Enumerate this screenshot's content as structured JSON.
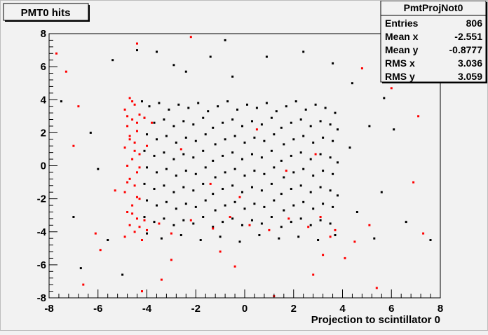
{
  "title": "PMT0 hits",
  "stats": {
    "name": "PmtProjNot0",
    "rows": [
      {
        "label": "Entries",
        "value": "806"
      },
      {
        "label": "Mean x",
        "value": "-2.551"
      },
      {
        "label": "Mean y",
        "value": "-0.8777"
      },
      {
        "label": "RMS x",
        "value": "3.036"
      },
      {
        "label": "RMS y",
        "value": "3.059"
      }
    ]
  },
  "chart_data": {
    "type": "scatter",
    "title": "PMT0 hits",
    "xlabel": "Projection to scintillator 0",
    "ylabel": "",
    "xlim": [
      -8,
      8
    ],
    "ylim": [
      -8,
      8
    ],
    "x_ticks": [
      -8,
      -6,
      -4,
      -2,
      0,
      2,
      4,
      6,
      8
    ],
    "y_ticks": [
      -8,
      -6,
      -4,
      -2,
      0,
      2,
      4,
      6,
      8
    ],
    "grid": false,
    "colors": {
      "series_black": "#000000",
      "series_red": "#ff0000",
      "frame": "#000000",
      "background": "#f2f2f2"
    },
    "series": [
      {
        "color": "#000000",
        "points": [
          [
            -4.2,
            3.9
          ],
          [
            -3.9,
            3.6
          ],
          [
            -3.5,
            3.8
          ],
          [
            -3.1,
            3.4
          ],
          [
            -2.7,
            3.7
          ],
          [
            -2.3,
            3.5
          ],
          [
            -1.9,
            3.8
          ],
          [
            -1.5,
            3.3
          ],
          [
            -1.1,
            3.6
          ],
          [
            -0.7,
            3.9
          ],
          [
            -0.3,
            3.4
          ],
          [
            0.1,
            3.7
          ],
          [
            0.5,
            3.5
          ],
          [
            0.9,
            3.8
          ],
          [
            1.3,
            3.3
          ],
          [
            1.7,
            3.6
          ],
          [
            2.1,
            3.9
          ],
          [
            2.5,
            3.4
          ],
          [
            2.9,
            3.7
          ],
          [
            3.3,
            3.5
          ],
          [
            3.7,
            3.2
          ],
          [
            -4.1,
            2.9
          ],
          [
            -3.7,
            2.6
          ],
          [
            -3.3,
            2.8
          ],
          [
            -2.9,
            2.4
          ],
          [
            -2.5,
            2.7
          ],
          [
            -2.1,
            2.5
          ],
          [
            -1.7,
            2.9
          ],
          [
            -1.3,
            2.3
          ],
          [
            -0.9,
            2.6
          ],
          [
            -0.5,
            2.8
          ],
          [
            -0.1,
            2.4
          ],
          [
            0.3,
            2.7
          ],
          [
            0.7,
            2.5
          ],
          [
            1.1,
            2.9
          ],
          [
            1.5,
            2.3
          ],
          [
            1.9,
            2.6
          ],
          [
            2.3,
            2.8
          ],
          [
            2.7,
            2.4
          ],
          [
            3.1,
            2.7
          ],
          [
            3.5,
            2.5
          ],
          [
            3.8,
            2.2
          ],
          [
            -4.0,
            1.9
          ],
          [
            -3.6,
            1.6
          ],
          [
            -3.2,
            1.8
          ],
          [
            -2.8,
            1.4
          ],
          [
            -2.4,
            1.7
          ],
          [
            -2.0,
            1.5
          ],
          [
            -1.6,
            1.9
          ],
          [
            -1.2,
            1.3
          ],
          [
            -0.8,
            1.6
          ],
          [
            -0.4,
            1.8
          ],
          [
            0.0,
            1.4
          ],
          [
            0.4,
            1.7
          ],
          [
            0.8,
            1.5
          ],
          [
            1.2,
            1.9
          ],
          [
            1.6,
            1.3
          ],
          [
            2.0,
            1.6
          ],
          [
            2.4,
            1.8
          ],
          [
            2.8,
            1.4
          ],
          [
            3.2,
            1.7
          ],
          [
            3.6,
            1.5
          ],
          [
            -4.1,
            0.9
          ],
          [
            -3.7,
            0.6
          ],
          [
            -3.3,
            0.8
          ],
          [
            -2.9,
            0.4
          ],
          [
            -2.5,
            0.7
          ],
          [
            -2.1,
            0.5
          ],
          [
            -1.7,
            0.9
          ],
          [
            -1.3,
            0.3
          ],
          [
            -0.9,
            0.6
          ],
          [
            -0.5,
            0.8
          ],
          [
            -0.1,
            0.4
          ],
          [
            0.3,
            0.7
          ],
          [
            0.7,
            0.5
          ],
          [
            1.1,
            0.9
          ],
          [
            1.5,
            0.3
          ],
          [
            1.9,
            0.6
          ],
          [
            2.3,
            0.8
          ],
          [
            2.7,
            0.4
          ],
          [
            3.1,
            0.7
          ],
          [
            3.5,
            0.5
          ],
          [
            3.8,
            0.2
          ],
          [
            -4.0,
            -0.1
          ],
          [
            -3.6,
            -0.4
          ],
          [
            -3.2,
            -0.2
          ],
          [
            -2.8,
            -0.6
          ],
          [
            -2.4,
            -0.3
          ],
          [
            -2.0,
            -0.5
          ],
          [
            -1.6,
            -0.1
          ],
          [
            -1.2,
            -0.7
          ],
          [
            -0.8,
            -0.4
          ],
          [
            -0.4,
            -0.2
          ],
          [
            0.0,
            -0.6
          ],
          [
            0.4,
            -0.3
          ],
          [
            0.8,
            -0.5
          ],
          [
            1.2,
            -0.1
          ],
          [
            1.6,
            -0.7
          ],
          [
            2.0,
            -0.4
          ],
          [
            2.4,
            -0.2
          ],
          [
            2.8,
            -0.6
          ],
          [
            3.2,
            -0.3
          ],
          [
            3.6,
            -0.5
          ],
          [
            -4.1,
            -1.1
          ],
          [
            -3.7,
            -1.4
          ],
          [
            -3.3,
            -1.2
          ],
          [
            -2.9,
            -1.6
          ],
          [
            -2.5,
            -1.3
          ],
          [
            -2.1,
            -1.5
          ],
          [
            -1.7,
            -1.1
          ],
          [
            -1.3,
            -1.7
          ],
          [
            -0.9,
            -1.4
          ],
          [
            -0.5,
            -1.2
          ],
          [
            -0.1,
            -1.6
          ],
          [
            0.3,
            -1.3
          ],
          [
            0.7,
            -1.5
          ],
          [
            1.1,
            -1.1
          ],
          [
            1.5,
            -1.7
          ],
          [
            1.9,
            -1.4
          ],
          [
            2.3,
            -1.2
          ],
          [
            2.7,
            -1.6
          ],
          [
            3.1,
            -1.3
          ],
          [
            3.5,
            -1.5
          ],
          [
            3.8,
            -1.8
          ],
          [
            -4.0,
            -2.1
          ],
          [
            -3.6,
            -2.4
          ],
          [
            -3.2,
            -2.2
          ],
          [
            -2.8,
            -2.6
          ],
          [
            -2.4,
            -2.3
          ],
          [
            -2.0,
            -2.5
          ],
          [
            -1.6,
            -2.1
          ],
          [
            -1.2,
            -2.7
          ],
          [
            -0.8,
            -2.4
          ],
          [
            -0.4,
            -2.2
          ],
          [
            0.0,
            -2.6
          ],
          [
            0.4,
            -2.3
          ],
          [
            0.8,
            -2.5
          ],
          [
            1.2,
            -2.1
          ],
          [
            1.6,
            -2.7
          ],
          [
            2.0,
            -2.4
          ],
          [
            2.4,
            -2.2
          ],
          [
            2.8,
            -2.6
          ],
          [
            3.2,
            -2.3
          ],
          [
            3.6,
            -2.5
          ],
          [
            -4.1,
            -3.1
          ],
          [
            -3.7,
            -3.4
          ],
          [
            -3.3,
            -3.2
          ],
          [
            -2.9,
            -3.6
          ],
          [
            -2.5,
            -3.3
          ],
          [
            -2.1,
            -3.5
          ],
          [
            -1.7,
            -3.1
          ],
          [
            -1.3,
            -3.7
          ],
          [
            -0.9,
            -3.4
          ],
          [
            -0.5,
            -3.2
          ],
          [
            -0.1,
            -3.6
          ],
          [
            0.3,
            -3.3
          ],
          [
            0.7,
            -3.5
          ],
          [
            1.1,
            -3.1
          ],
          [
            1.5,
            -3.7
          ],
          [
            1.9,
            -3.4
          ],
          [
            2.3,
            -3.2
          ],
          [
            2.7,
            -3.6
          ],
          [
            3.1,
            -3.3
          ],
          [
            3.5,
            -3.5
          ],
          [
            -4.0,
            -4.1
          ],
          [
            -3.4,
            -4.4
          ],
          [
            -2.6,
            -4.2
          ],
          [
            -1.8,
            -4.5
          ],
          [
            -1.0,
            -4.3
          ],
          [
            -0.2,
            -4.6
          ],
          [
            0.6,
            -4.2
          ],
          [
            1.4,
            -4.4
          ],
          [
            2.2,
            -4.3
          ],
          [
            3.0,
            -4.5
          ],
          [
            3.7,
            -4.2
          ],
          [
            -7.5,
            3.9
          ],
          [
            -7.0,
            -3.1
          ],
          [
            -6.7,
            -6.2
          ],
          [
            -6.0,
            -0.2
          ],
          [
            -5.4,
            6.4
          ],
          [
            -5.0,
            -6.6
          ],
          [
            -4.4,
            7.0
          ],
          [
            -3.6,
            6.9
          ],
          [
            -2.9,
            6.1
          ],
          [
            -2.4,
            5.7
          ],
          [
            -1.4,
            6.6
          ],
          [
            -0.8,
            7.6
          ],
          [
            -0.5,
            5.4
          ],
          [
            0.9,
            6.6
          ],
          [
            2.4,
            6.9
          ],
          [
            3.6,
            6.2
          ],
          [
            4.4,
            5.0
          ],
          [
            5.1,
            2.4
          ],
          [
            5.6,
            -1.6
          ],
          [
            6.1,
            2.2
          ],
          [
            6.6,
            -3.4
          ],
          [
            7.6,
            -4.5
          ],
          [
            4.6,
            -2.8
          ],
          [
            5.3,
            -4.4
          ],
          [
            -6.3,
            2.0
          ],
          [
            -5.6,
            -4.5
          ],
          [
            4.3,
            1.1
          ],
          [
            5.7,
            4.1
          ]
        ]
      },
      {
        "color": "#ff0000",
        "points": [
          [
            -4.7,
            4.1
          ],
          [
            -4.5,
            3.7
          ],
          [
            -4.9,
            3.4
          ],
          [
            -4.3,
            3.1
          ],
          [
            -4.6,
            2.8
          ],
          [
            -4.8,
            2.4
          ],
          [
            -4.4,
            2.1
          ],
          [
            -4.7,
            1.8
          ],
          [
            -4.5,
            1.4
          ],
          [
            -4.9,
            1.1
          ],
          [
            -4.3,
            0.7
          ],
          [
            -4.6,
            0.4
          ],
          [
            -4.8,
            0.0
          ],
          [
            -4.4,
            -0.4
          ],
          [
            -4.7,
            -0.8
          ],
          [
            -4.5,
            -1.2
          ],
          [
            -4.9,
            -1.6
          ],
          [
            -4.3,
            -2.0
          ],
          [
            -4.6,
            -2.4
          ],
          [
            -4.8,
            -2.8
          ],
          [
            -4.4,
            -3.2
          ],
          [
            -4.7,
            -3.6
          ],
          [
            -4.5,
            -4.0
          ],
          [
            -4.9,
            -4.3
          ],
          [
            -4.2,
            -4.5
          ],
          [
            -4.6,
            3.9
          ],
          [
            -4.8,
            3.0
          ],
          [
            -4.4,
            2.6
          ],
          [
            -4.7,
            1.6
          ],
          [
            -4.5,
            0.9
          ],
          [
            -4.3,
            -0.1
          ],
          [
            -4.8,
            -1.0
          ],
          [
            -4.4,
            -1.9
          ],
          [
            -4.6,
            -2.9
          ],
          [
            -4.3,
            -3.7
          ],
          [
            -4.1,
            -3.3
          ],
          [
            -4.0,
            -3.9
          ],
          [
            -4.1,
            2.9
          ],
          [
            -4.0,
            1.2
          ],
          [
            -3.5,
            -3.5
          ],
          [
            -3.0,
            -4.1
          ],
          [
            -2.2,
            -3.3
          ],
          [
            -1.3,
            -3.8
          ],
          [
            -0.6,
            -3.1
          ],
          [
            0.2,
            -3.6
          ],
          [
            1.0,
            -3.9
          ],
          [
            1.8,
            -3.2
          ],
          [
            2.6,
            -3.7
          ],
          [
            3.1,
            -3.1
          ],
          [
            3.5,
            -4.3
          ],
          [
            3.7,
            -3.9
          ],
          [
            -3.8,
            2.6
          ],
          [
            -2.6,
            1.0
          ],
          [
            -1.4,
            -1.1
          ],
          [
            0.5,
            2.2
          ],
          [
            1.7,
            -0.3
          ],
          [
            2.9,
            0.7
          ],
          [
            -0.2,
            -1.9
          ],
          [
            -7.7,
            6.8
          ],
          [
            -7.3,
            5.7
          ],
          [
            -6.8,
            3.6
          ],
          [
            -6.6,
            -7.2
          ],
          [
            -6.1,
            -4.1
          ],
          [
            -5.3,
            -1.5
          ],
          [
            -4.2,
            -7.6
          ],
          [
            -3.4,
            -6.9
          ],
          [
            -2.2,
            7.8
          ],
          [
            -1.0,
            -5.2
          ],
          [
            -0.4,
            -6.1
          ],
          [
            1.2,
            -7.9
          ],
          [
            2.8,
            -6.6
          ],
          [
            4.1,
            -5.6
          ],
          [
            5.4,
            -7.4
          ],
          [
            6.0,
            4.7
          ],
          [
            6.5,
            5.2
          ],
          [
            7.1,
            3.0
          ],
          [
            7.3,
            -4.1
          ],
          [
            6.9,
            -1.0
          ],
          [
            5.1,
            -3.6
          ],
          [
            4.5,
            -4.6
          ],
          [
            -5.9,
            -5.1
          ],
          [
            -7.0,
            1.2
          ],
          [
            4.8,
            5.9
          ],
          [
            -4.4,
            7.4
          ],
          [
            -3.0,
            -5.7
          ],
          [
            3.2,
            -5.4
          ]
        ]
      }
    ]
  }
}
